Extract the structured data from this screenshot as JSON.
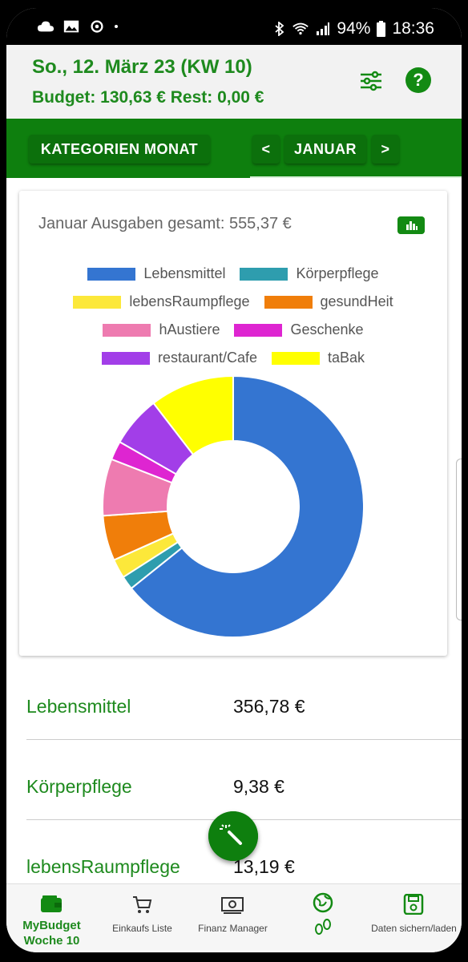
{
  "status_bar": {
    "battery": "94%",
    "time": "18:36"
  },
  "header": {
    "date": "So., 12. März 23 (KW 10)",
    "budget": "Budget: 130,63 € Rest: 0,00 €",
    "help_label": "?"
  },
  "toolbar": {
    "categories_label": "KATEGORIEN MONAT",
    "prev_label": "<",
    "month_label": "JANUAR",
    "next_label": ">"
  },
  "card": {
    "title": "Januar Ausgaben gesamt: 555,37 €"
  },
  "chart_data": {
    "type": "pie",
    "donut": true,
    "title": "Januar Ausgaben gesamt: 555,37 €",
    "legend_position": "top",
    "categories": [
      "Lebensmittel",
      "Körperpflege",
      "lebensRaumpflege",
      "gesundHeit",
      "hAustiere",
      "Geschenke",
      "restaurant/Cafe",
      "taBak"
    ],
    "values": [
      356.78,
      9.38,
      13.19,
      31.0,
      39.0,
      13.0,
      35.0,
      58.0
    ],
    "colors": [
      "#3475D1",
      "#2E9DAE",
      "#FCE83A",
      "#F07E0A",
      "#EE7BB0",
      "#DE25D1",
      "#A23EE8",
      "#FFFF00"
    ]
  },
  "list": [
    {
      "name": "Lebensmittel",
      "value": "356,78 €"
    },
    {
      "name": "Körperpflege",
      "value": "9,38 €"
    },
    {
      "name": "lebensRaumpflege",
      "value": "13,19 €"
    }
  ],
  "bottom_nav": [
    {
      "label": "MyBudget Woche 10",
      "icon": "wallet-icon",
      "active": true
    },
    {
      "label": "Einkaufs Liste",
      "icon": "cart-icon",
      "active": false
    },
    {
      "label": "Finanz Manager",
      "icon": "money-icon",
      "active": false
    },
    {
      "label": "",
      "icon": "globe-footprints-icon",
      "active": false
    },
    {
      "label": "Daten sichern/laden",
      "icon": "save-icon",
      "active": false
    }
  ],
  "colors": {
    "primary": "#0e7f0e",
    "text_green": "#1e8a1e"
  }
}
